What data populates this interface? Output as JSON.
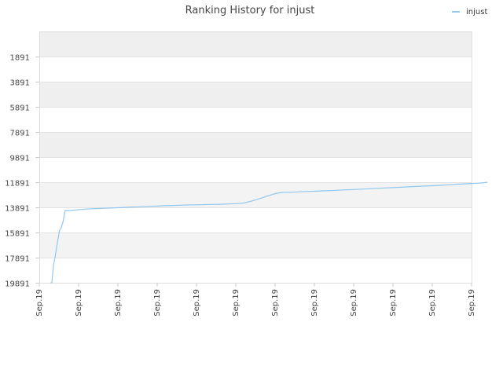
{
  "chart_data": {
    "type": "line",
    "title": "Ranking History for injust",
    "xlabel": "",
    "ylabel": "",
    "legend_position": "top-right",
    "grid": true,
    "y_inverted": true,
    "ylim": [
      19891,
      -109
    ],
    "y_ticks": [
      19891,
      17891,
      15891,
      13891,
      11891,
      9891,
      7891,
      5891,
      3891,
      1891
    ],
    "x_ticks": [
      "Sep.19",
      "Sep.19",
      "Sep.19",
      "Sep.19",
      "Sep.19",
      "Sep.19",
      "Sep.19",
      "Sep.19",
      "Sep.19",
      "Sep.19",
      "Sep.19",
      "Sep.19"
    ],
    "series": [
      {
        "name": "injust",
        "color": "#90c8f0",
        "x": [
          0.3,
          0.32,
          0.36,
          0.4,
          0.46,
          0.5,
          0.5,
          0.52,
          0.54,
          0.56,
          0.58,
          0.6,
          0.62,
          0.64,
          0.66,
          0.7,
          0.75,
          0.8,
          0.85,
          0.9,
          0.95,
          1.0,
          1.1,
          1.2,
          1.4,
          1.6,
          1.8,
          2.0,
          2.2,
          2.4,
          2.6,
          2.8,
          3.0,
          3.2,
          3.4,
          3.6,
          3.8,
          4.0,
          4.2,
          4.4,
          4.6,
          4.8,
          5.0,
          5.2,
          5.4,
          5.6,
          5.8,
          6.0,
          6.2,
          6.4,
          6.6,
          6.8,
          7.0,
          7.2,
          7.4,
          7.6,
          7.8,
          8.0,
          8.2,
          8.4,
          8.6,
          8.8,
          9.0,
          9.2,
          9.4,
          9.6,
          9.8,
          10.0,
          10.2,
          10.4,
          10.6,
          10.8,
          11.0,
          11.2,
          11.4
        ],
        "y": [
          19891,
          19891,
          18500,
          17891,
          16700,
          16000,
          15900,
          15700,
          15600,
          15500,
          15300,
          15100,
          14800,
          14400,
          14150,
          14150,
          14150,
          14140,
          14120,
          14100,
          14090,
          14080,
          14060,
          14030,
          14000,
          13970,
          13950,
          13920,
          13890,
          13860,
          13840,
          13810,
          13790,
          13760,
          13740,
          13720,
          13700,
          13690,
          13670,
          13660,
          13650,
          13620,
          13600,
          13550,
          13400,
          13200,
          13000,
          12800,
          12700,
          12690,
          12660,
          12630,
          12610,
          12580,
          12560,
          12530,
          12500,
          12470,
          12440,
          12410,
          12380,
          12350,
          12320,
          12290,
          12260,
          12230,
          12200,
          12170,
          12140,
          12100,
          12060,
          12020,
          11990,
          11960,
          11900
        ]
      }
    ]
  }
}
